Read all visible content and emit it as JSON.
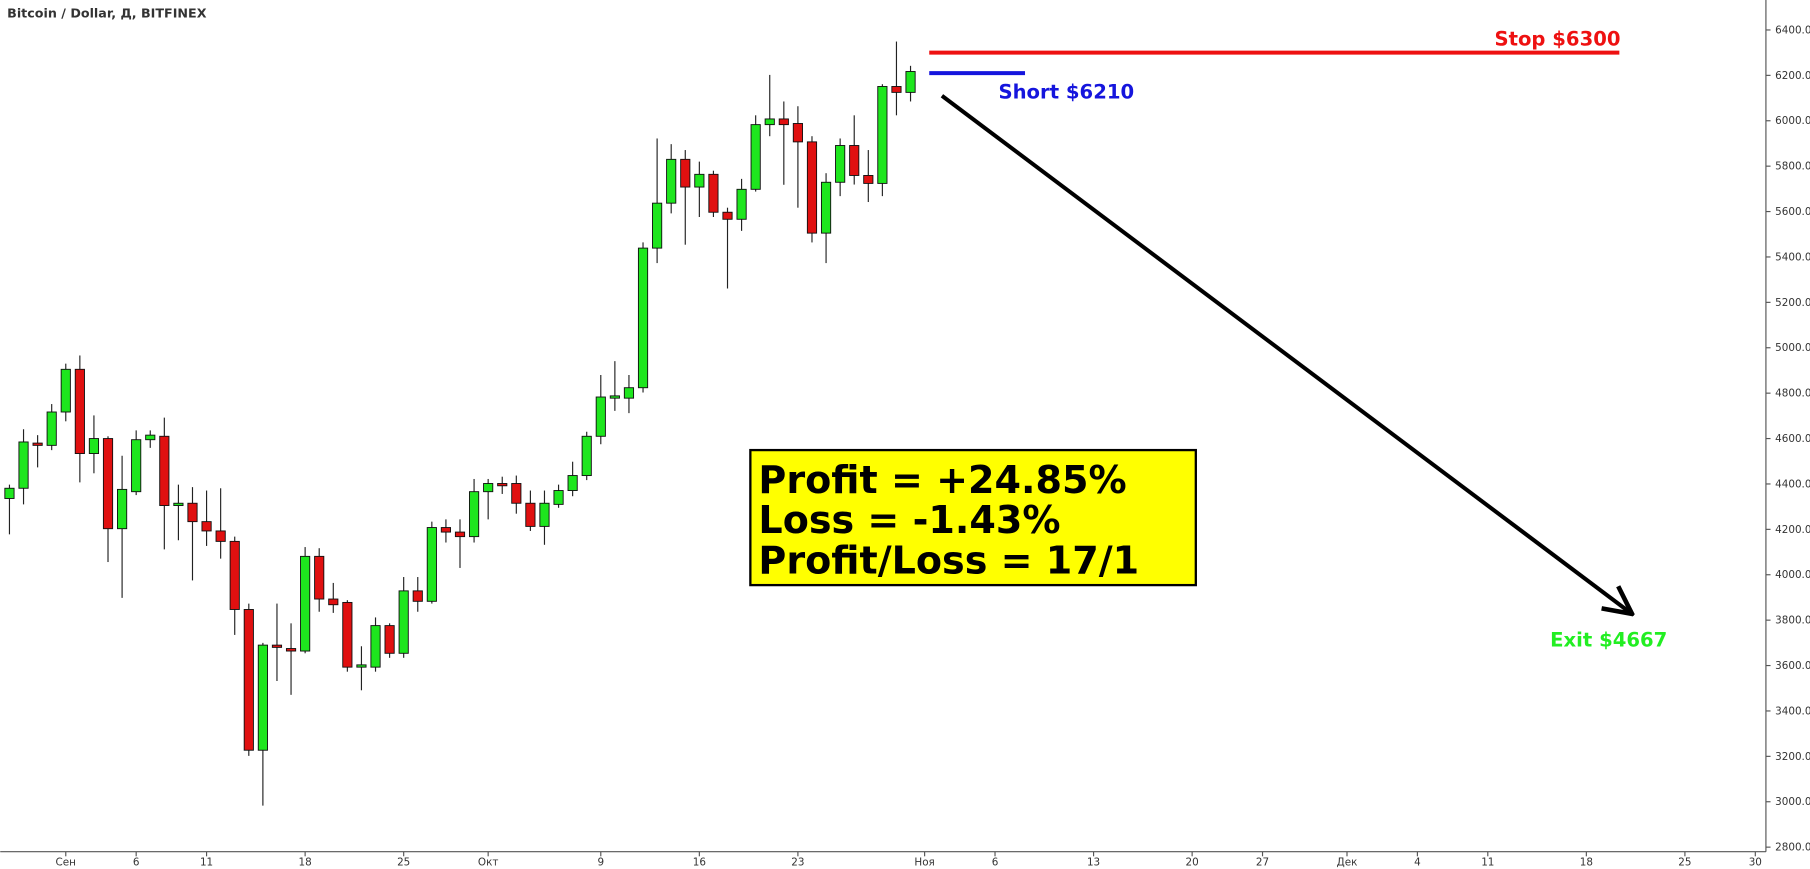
{
  "chart_data": {
    "type": "candlestick",
    "title": "Bitcoin / Dollar, Д, BITFINEX",
    "categories": [
      null,
      null,
      null,
      null,
      "Сен",
      null,
      null,
      null,
      null,
      "6",
      null,
      null,
      null,
      null,
      "11",
      null,
      null,
      null,
      null,
      null,
      null,
      "18",
      null,
      null,
      null,
      null,
      null,
      null,
      "25",
      null,
      null,
      null,
      null,
      null,
      "Окт",
      null,
      null,
      null,
      null,
      null,
      null,
      null,
      "9",
      null,
      null,
      null,
      null,
      null,
      null,
      "16",
      null,
      null,
      null,
      null,
      null,
      null,
      "23",
      null,
      null,
      null,
      null,
      null,
      null,
      null,
      null,
      "Ноя",
      null,
      null,
      null,
      null,
      "6",
      null,
      null,
      null,
      null,
      null,
      null,
      "13",
      null,
      null,
      null,
      null,
      null,
      null,
      "20",
      null,
      null,
      null,
      null,
      "27",
      null,
      null,
      null,
      null,
      null,
      "Дек",
      null,
      null,
      null,
      null,
      "4",
      null,
      null,
      null,
      null,
      "11",
      null,
      null,
      null,
      null,
      null,
      null,
      "18",
      null,
      null,
      null,
      null,
      null,
      null,
      "25",
      null,
      null,
      null,
      null,
      "30"
    ],
    "open": [
      4336,
      4381,
      4580,
      4570,
      4717,
      4905,
      4534,
      4600,
      4203,
      4366,
      4595,
      4610,
      4305,
      4315,
      4234,
      4193,
      4147,
      3847,
      3227,
      3690,
      3675,
      3664,
      4081,
      3893,
      3878,
      3593,
      3593,
      3776,
      3654,
      3929,
      3883,
      4208,
      4188,
      4168,
      4366,
      4402,
      4402,
      4315,
      4213,
      4310,
      4371,
      4437,
      4610,
      4778,
      4778,
      4824,
      5439,
      5637,
      5830,
      5708,
      5764,
      5597,
      5566,
      5698,
      5983,
      6008,
      5988,
      5907,
      5505,
      5729,
      5891,
      5759,
      5724,
      6151,
      6125,
      null,
      null,
      null,
      null,
      null,
      null,
      null,
      null,
      null,
      null,
      null,
      null,
      null,
      null,
      null,
      null,
      null,
      null,
      null,
      null,
      null,
      null,
      null,
      null,
      null,
      null,
      null,
      null,
      null,
      null,
      null,
      null,
      null,
      null,
      null,
      null,
      null,
      null,
      null,
      null,
      null,
      null,
      null,
      null,
      null,
      null,
      null,
      null,
      null,
      null,
      null,
      null,
      null,
      null,
      null,
      null,
      null,
      null,
      null,
      null
    ],
    "high": [
      4397,
      4641,
      4615,
      4752,
      4930,
      4966,
      4702,
      4610,
      4524,
      4636,
      4636,
      4692,
      4397,
      4386,
      4371,
      4381,
      4168,
      3873,
      3700,
      3873,
      3786,
      4122,
      4117,
      3964,
      3888,
      3685,
      3812,
      3786,
      3990,
      3990,
      4234,
      4244,
      4244,
      4422,
      4422,
      4432,
      4437,
      4371,
      4371,
      4397,
      4498,
      4630,
      4880,
      4941,
      4880,
      5464,
      5922,
      5897,
      5871,
      5820,
      5780,
      5617,
      5744,
      6024,
      6202,
      6085,
      6064,
      5932,
      5769,
      5922,
      6024,
      5871,
      6161,
      6349,
      6242,
      null,
      null,
      null,
      null,
      null,
      null,
      null,
      null,
      null,
      null,
      null,
      null,
      null,
      null,
      null,
      null,
      null,
      null,
      null,
      null,
      null,
      null,
      null,
      null,
      null,
      null,
      null,
      null,
      null,
      null,
      null,
      null,
      null,
      null,
      null,
      null,
      null,
      null,
      null,
      null,
      null,
      null,
      null,
      null,
      null,
      null,
      null,
      null,
      null,
      null,
      null,
      null,
      null,
      null,
      null,
      null,
      null,
      null,
      null,
      null
    ],
    "low": [
      4178,
      4310,
      4473,
      4549,
      4676,
      4407,
      4447,
      4056,
      3898,
      4351,
      4559,
      4112,
      4152,
      3975,
      4127,
      4071,
      3735,
      3202,
      2983,
      3532,
      3471,
      3654,
      3837,
      3832,
      3573,
      3491,
      3573,
      3634,
      3634,
      3837,
      3873,
      4142,
      4030,
      4142,
      4244,
      4356,
      4269,
      4193,
      4132,
      4295,
      4346,
      4417,
      4575,
      4722,
      4712,
      4803,
      5373,
      5592,
      5454,
      5576,
      5576,
      5261,
      5515,
      5688,
      5932,
      5718,
      5617,
      5464,
      5373,
      5668,
      5719,
      5642,
      5668,
      6024,
      6085,
      null,
      null,
      null,
      null,
      null,
      null,
      null,
      null,
      null,
      null,
      null,
      null,
      null,
      null,
      null,
      null,
      null,
      null,
      null,
      null,
      null,
      null,
      null,
      null,
      null,
      null,
      null,
      null,
      null,
      null,
      null,
      null,
      null,
      null,
      null,
      null,
      null,
      null,
      null,
      null,
      null,
      null,
      null,
      null,
      null,
      null,
      null,
      null,
      null,
      null,
      null,
      null,
      null,
      null,
      null,
      null,
      null,
      null,
      null,
      null
    ],
    "close": [
      4381,
      4585,
      4570,
      4717,
      4905,
      4534,
      4600,
      4203,
      4376,
      4595,
      4615,
      4305,
      4315,
      4234,
      4193,
      4147,
      3847,
      3227,
      3690,
      3680,
      3664,
      4081,
      3893,
      3868,
      3593,
      3603,
      3776,
      3654,
      3929,
      3883,
      4208,
      4188,
      4168,
      4366,
      4402,
      4392,
      4315,
      4213,
      4315,
      4371,
      4437,
      4610,
      4783,
      4788,
      4824,
      5439,
      5637,
      5830,
      5708,
      5764,
      5597,
      5566,
      5698,
      5983,
      6008,
      5983,
      5907,
      5505,
      5729,
      5891,
      5759,
      5724,
      6151,
      6125,
      6217,
      null,
      null,
      null,
      null,
      null,
      null,
      null,
      null,
      null,
      null,
      null,
      null,
      null,
      null,
      null,
      null,
      null,
      null,
      null,
      null,
      null,
      null,
      null,
      null,
      null,
      null,
      null,
      null,
      null,
      null,
      null,
      null,
      null,
      null,
      null,
      null,
      null,
      null,
      null,
      null,
      null,
      null,
      null,
      null,
      null,
      null,
      null,
      null,
      null,
      null,
      null,
      null,
      null,
      null,
      null,
      null,
      null,
      null,
      null,
      null
    ],
    "up_color": "#1ee61e",
    "down_color": "#e01010",
    "ylim": [
      2780,
      6532
    ],
    "yticks": [
      {
        "value": 2800,
        "label": "2800.0"
      },
      {
        "value": 3000,
        "label": "3000.0"
      },
      {
        "value": 3200,
        "label": "3200.0"
      },
      {
        "value": 3400,
        "label": "3400.0"
      },
      {
        "value": 3600,
        "label": "3600.0"
      },
      {
        "value": 3800,
        "label": "3800.0"
      },
      {
        "value": 4000,
        "label": "4000.0"
      },
      {
        "value": 4200,
        "label": "4200.0"
      },
      {
        "value": 4400,
        "label": "4400.0"
      },
      {
        "value": 4600,
        "label": "4600.0"
      },
      {
        "value": 4800,
        "label": "4800.0"
      },
      {
        "value": 5000,
        "label": "5000.0"
      },
      {
        "value": 5200,
        "label": "5200.0"
      },
      {
        "value": 5400,
        "label": "5400.0"
      },
      {
        "value": 5600,
        "label": "5600.0"
      },
      {
        "value": 5800,
        "label": "5800.0"
      },
      {
        "value": 6000,
        "label": "6000.0"
      },
      {
        "value": 6200,
        "label": "6200.0"
      },
      {
        "value": 6400,
        "label": "6400.0"
      }
    ],
    "levels": [
      {
        "label": "Stop $6300",
        "value": 6300,
        "color": "#ee1111"
      },
      {
        "label": "Short $6210",
        "value": 6210,
        "color": "#1515dd"
      }
    ],
    "exit": {
      "label": "Exit $4667",
      "color": "#22ee22"
    },
    "summary": [
      "Profit = +24.85%",
      "Loss = -1.43%",
      "Profit/Loss = 17/1"
    ]
  }
}
